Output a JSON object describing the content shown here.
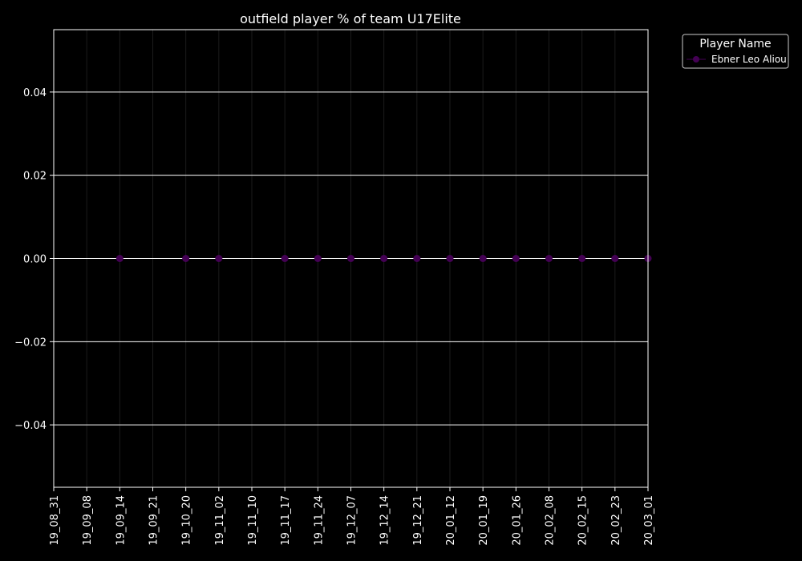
{
  "chart_data": {
    "type": "line",
    "title": "outfield player % of team U17Elite",
    "xlabel": "",
    "ylabel": "",
    "categories": [
      "19_08_31",
      "19_09_08",
      "19_09_14",
      "19_09_21",
      "19_10_20",
      "19_11_02",
      "19_11_10",
      "19_11_17",
      "19_11_24",
      "19_12_07",
      "19_12_14",
      "19_12_21",
      "20_01_12",
      "20_01_19",
      "20_01_26",
      "20_02_08",
      "20_02_15",
      "20_02_23",
      "20_03_01"
    ],
    "yticks": [
      "−0.04",
      "−0.02",
      "0.00",
      "0.02",
      "0.04"
    ],
    "ylim": [
      -0.055,
      0.055
    ],
    "grid": true,
    "legend": {
      "title": "Player Name",
      "placement": "outside-top-right"
    },
    "series": [
      {
        "name": "Ebner Leo Aliou",
        "color": "#440154",
        "x": [
          "19_09_14",
          "19_10_20",
          "19_11_02",
          "19_11_17",
          "19_11_24",
          "19_12_07",
          "19_12_14",
          "19_12_21",
          "20_01_12",
          "20_01_19",
          "20_01_26",
          "20_02_08",
          "20_02_15",
          "20_02_23",
          "20_03_01"
        ],
        "values": [
          0,
          0,
          0,
          0,
          0,
          0,
          0,
          0,
          0,
          0,
          0,
          0,
          0,
          0,
          0
        ]
      }
    ]
  },
  "colors": {
    "background": "#000000",
    "axes": "#ffffff",
    "grid": "#ffffff",
    "series": "#440154"
  }
}
